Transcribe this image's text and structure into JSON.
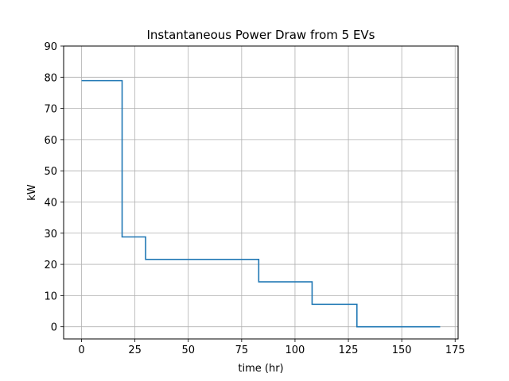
{
  "chart_data": {
    "type": "line",
    "step": true,
    "title": "Instantaneous Power Draw from 5 EVs",
    "xlabel": "time (hr)",
    "ylabel": "kW",
    "xlim": [
      -8.4,
      176.4
    ],
    "ylim": [
      -3.9,
      90
    ],
    "xticks": [
      0,
      25,
      50,
      75,
      100,
      125,
      150,
      175
    ],
    "yticks": [
      0,
      10,
      20,
      30,
      40,
      50,
      60,
      70,
      80,
      90
    ],
    "grid": true,
    "line_color": "#1f77b4",
    "series": [
      {
        "x": [
          0,
          19,
          19,
          30,
          30,
          83,
          83,
          108,
          108,
          129,
          129,
          168
        ],
        "y": [
          78.9,
          78.9,
          28.8,
          28.8,
          21.6,
          21.6,
          14.4,
          14.4,
          7.2,
          7.2,
          0,
          0
        ]
      }
    ]
  }
}
